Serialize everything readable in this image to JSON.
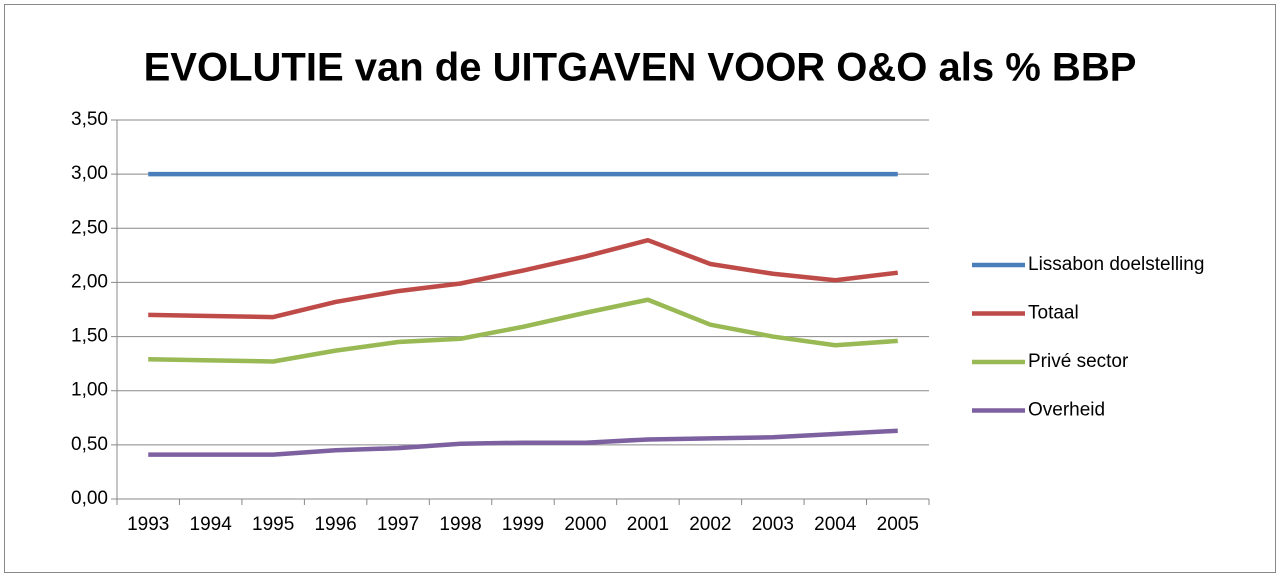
{
  "chart_data": {
    "type": "line",
    "title": "EVOLUTIE van de UITGAVEN VOOR O&O als % BBP",
    "categories": [
      "1993",
      "1994",
      "1995",
      "1996",
      "1997",
      "1998",
      "1999",
      "2000",
      "2001",
      "2002",
      "2003",
      "2004",
      "2005"
    ],
    "series": [
      {
        "name": "Lissabon doelstelling",
        "color": "#4a7ebb",
        "values": [
          3,
          3,
          3,
          3,
          3,
          3,
          3,
          3,
          3,
          3,
          3,
          3,
          3
        ]
      },
      {
        "name": "Totaal",
        "color": "#be4b48",
        "values": [
          1.7,
          1.69,
          1.68,
          1.82,
          1.92,
          1.99,
          2.11,
          2.24,
          2.39,
          2.17,
          2.08,
          2.02,
          2.09
        ]
      },
      {
        "name": "Privé sector",
        "color": "#98b954",
        "values": [
          1.29,
          1.28,
          1.27,
          1.37,
          1.45,
          1.48,
          1.59,
          1.72,
          1.84,
          1.61,
          1.5,
          1.42,
          1.46
        ]
      },
      {
        "name": "Overheid",
        "color": "#7d60a0",
        "values": [
          0.41,
          0.41,
          0.41,
          0.45,
          0.47,
          0.51,
          0.52,
          0.52,
          0.55,
          0.56,
          0.57,
          0.6,
          0.63
        ]
      }
    ],
    "ylim": [
      0,
      3.5
    ],
    "yticks": [
      {
        "value": 0,
        "label": "0,00"
      },
      {
        "value": 0.5,
        "label": "0,50"
      },
      {
        "value": 1,
        "label": "1,00"
      },
      {
        "value": 1.5,
        "label": "1,50"
      },
      {
        "value": 2,
        "label": "2,00"
      },
      {
        "value": 2.5,
        "label": "2,50"
      },
      {
        "value": 3,
        "label": "3,00"
      },
      {
        "value": 3.5,
        "label": "3,50"
      }
    ],
    "grid": true,
    "legend": "right"
  }
}
